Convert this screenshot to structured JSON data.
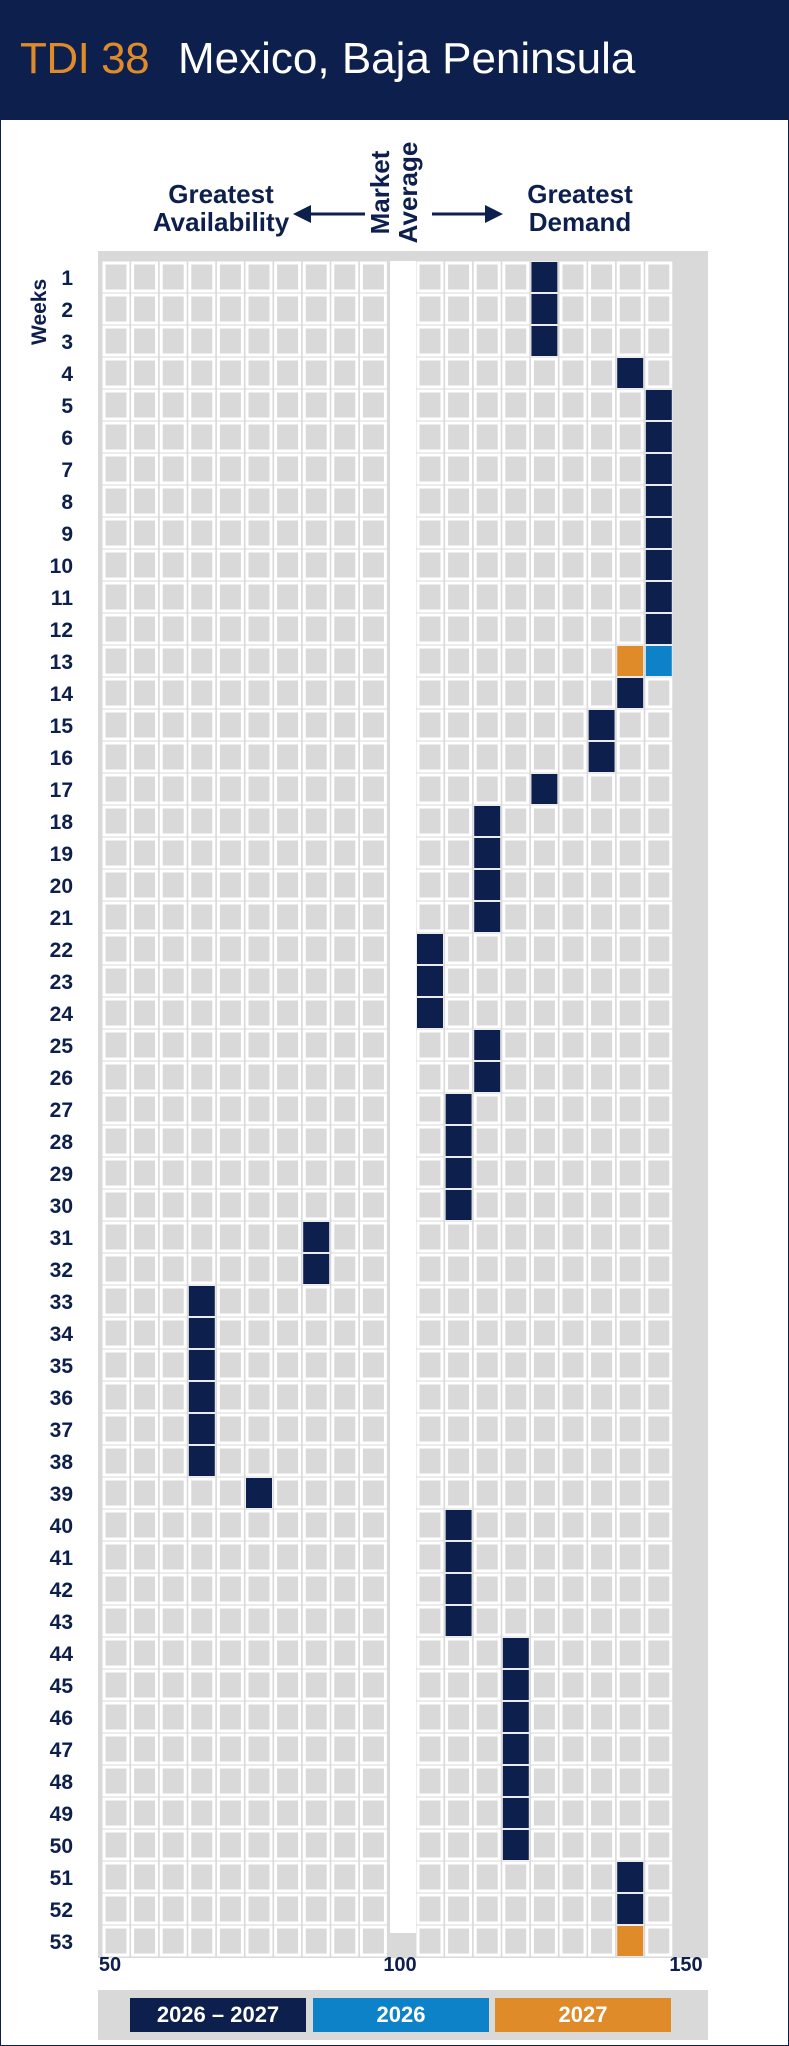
{
  "header": {
    "code": "TDI 38",
    "title": "Mexico, Baja Peninsula"
  },
  "labels": {
    "left": [
      "Greatest",
      "Availability"
    ],
    "market": [
      "Market",
      "Average"
    ],
    "right": [
      "Greatest",
      "Demand"
    ],
    "weeks": "Weeks"
  },
  "colors": {
    "navy": "#0d1f4c",
    "blue": "#0d82c8",
    "orange": "#e08b2a",
    "grid": "#d9d9d9"
  },
  "chart_data": {
    "type": "heatmap",
    "x_ticks": [
      50,
      100,
      150
    ],
    "xlim": [
      50,
      150
    ],
    "grid": true,
    "legend_placement": "bottom",
    "weeks": [
      1,
      2,
      3,
      4,
      5,
      6,
      7,
      8,
      9,
      10,
      11,
      12,
      13,
      14,
      15,
      16,
      17,
      18,
      19,
      20,
      21,
      22,
      23,
      24,
      25,
      26,
      27,
      28,
      29,
      30,
      31,
      32,
      33,
      34,
      35,
      36,
      37,
      38,
      39,
      40,
      41,
      42,
      43,
      44,
      45,
      46,
      47,
      48,
      49,
      50,
      51,
      52,
      53
    ],
    "series": [
      {
        "name": "2026 – 2027",
        "color": "#0d1f4c",
        "values": [
          125,
          125,
          125,
          140,
          145,
          145,
          145,
          145,
          145,
          145,
          145,
          145,
          null,
          140,
          135,
          135,
          125,
          115,
          115,
          115,
          115,
          105,
          105,
          105,
          115,
          115,
          110,
          110,
          110,
          110,
          90,
          90,
          70,
          70,
          70,
          70,
          70,
          70,
          80,
          110,
          110,
          110,
          110,
          120,
          120,
          120,
          120,
          120,
          120,
          120,
          140,
          140,
          null
        ]
      },
      {
        "name": "2026",
        "color": "#0d82c8",
        "values": [
          null,
          null,
          null,
          null,
          null,
          null,
          null,
          null,
          null,
          null,
          null,
          null,
          145,
          null,
          null,
          null,
          null,
          null,
          null,
          null,
          null,
          null,
          null,
          null,
          null,
          null,
          null,
          null,
          null,
          null,
          null,
          null,
          null,
          null,
          null,
          null,
          null,
          null,
          null,
          null,
          null,
          null,
          null,
          null,
          null,
          null,
          null,
          null,
          null,
          null,
          null,
          null,
          null
        ]
      },
      {
        "name": "2027",
        "color": "#e08b2a",
        "values": [
          null,
          null,
          null,
          null,
          null,
          null,
          null,
          null,
          null,
          null,
          null,
          null,
          140,
          null,
          null,
          null,
          null,
          null,
          null,
          null,
          null,
          null,
          null,
          null,
          null,
          null,
          null,
          null,
          null,
          null,
          null,
          null,
          null,
          null,
          null,
          null,
          null,
          null,
          null,
          null,
          null,
          null,
          null,
          null,
          null,
          null,
          null,
          null,
          null,
          null,
          null,
          null,
          140
        ]
      }
    ]
  }
}
